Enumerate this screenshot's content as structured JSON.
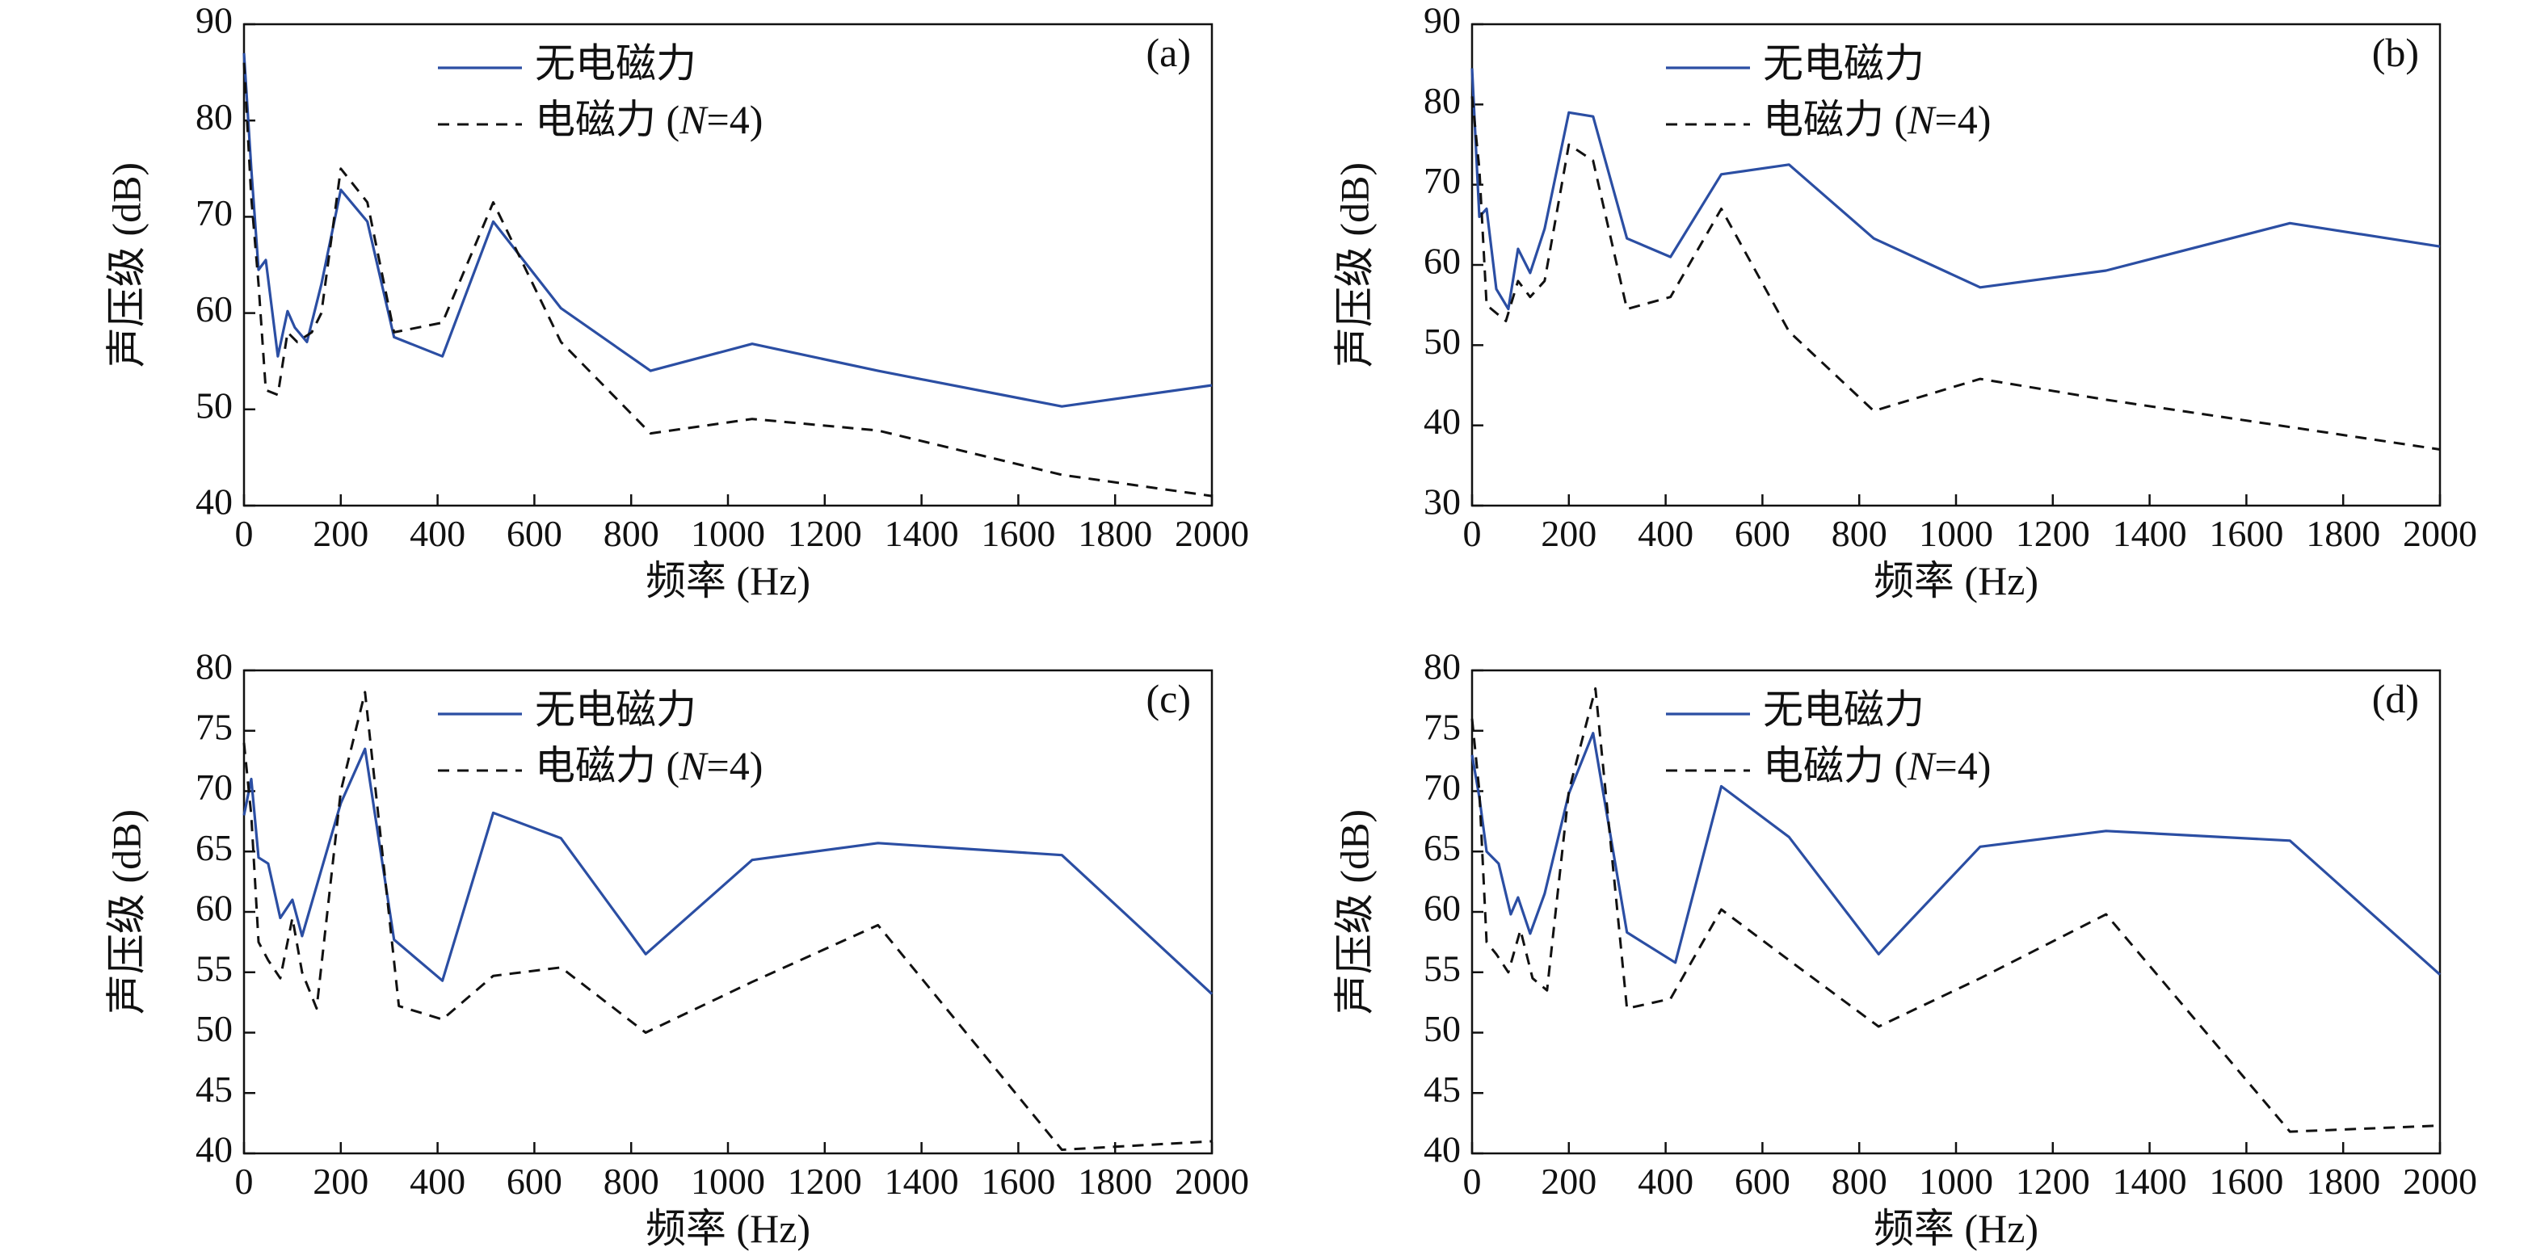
{
  "chart_data": [
    {
      "type": "line",
      "panel": "(a)",
      "xlabel": "频率 (Hz)",
      "ylabel": "声压级 (dB)",
      "xlim": [
        0,
        2000
      ],
      "ylim": [
        40,
        90
      ],
      "xticks": [
        0,
        200,
        400,
        600,
        800,
        1000,
        1200,
        1400,
        1600,
        1800,
        2000
      ],
      "yticks": [
        40,
        50,
        60,
        70,
        80,
        90
      ],
      "legend_position": "top",
      "series": [
        {
          "name": "无电磁力",
          "style": "solid",
          "color": "#2b4ea3",
          "x": [
            0,
            15,
            30,
            45,
            70,
            90,
            105,
            130,
            160,
            200,
            255,
            310,
            410,
            515,
            655,
            840,
            1050,
            1310,
            1690,
            2000
          ],
          "y": [
            87,
            75,
            64.5,
            65.5,
            55.5,
            60.2,
            58.5,
            57,
            63,
            72.8,
            69.5,
            57.5,
            55.5,
            69.5,
            60.5,
            54,
            56.8,
            54,
            50.3,
            52.5
          ]
        },
        {
          "name": "电磁力 (N=4)",
          "style": "dashed",
          "color": "#111111",
          "x": [
            0,
            15,
            30,
            45,
            70,
            90,
            110,
            140,
            160,
            200,
            255,
            310,
            410,
            515,
            655,
            840,
            1050,
            1310,
            1690,
            2000
          ],
          "y": [
            86,
            72,
            63,
            52,
            51.5,
            58,
            57,
            58,
            60,
            75,
            71.5,
            58,
            59,
            71.5,
            57,
            47.5,
            49,
            47.8,
            43.2,
            41
          ]
        }
      ]
    },
    {
      "type": "line",
      "panel": "(b)",
      "xlabel": "频率 (Hz)",
      "ylabel": "声压级 (dB)",
      "xlim": [
        0,
        2000
      ],
      "ylim": [
        30,
        90
      ],
      "xticks": [
        0,
        200,
        400,
        600,
        800,
        1000,
        1200,
        1400,
        1600,
        1800,
        2000
      ],
      "yticks": [
        30,
        40,
        50,
        60,
        70,
        80,
        90
      ],
      "legend_position": "top",
      "series": [
        {
          "name": "无电磁力",
          "style": "solid",
          "color": "#2b4ea3",
          "x": [
            0,
            15,
            30,
            50,
            75,
            95,
            120,
            150,
            200,
            250,
            320,
            410,
            515,
            655,
            830,
            1050,
            1310,
            1690,
            2000
          ],
          "y": [
            84.5,
            66,
            67,
            57,
            54.5,
            62,
            59,
            64.5,
            79,
            78.5,
            63.3,
            61,
            71.3,
            72.5,
            63.3,
            57.2,
            59.3,
            65.2,
            62.3
          ]
        },
        {
          "name": "电磁力 (N=4)",
          "style": "dashed",
          "color": "#111111",
          "x": [
            0,
            15,
            30,
            50,
            70,
            95,
            120,
            150,
            200,
            250,
            320,
            410,
            515,
            655,
            830,
            1050,
            1310,
            1690,
            2000
          ],
          "y": [
            81,
            72,
            55,
            54,
            53,
            58,
            56,
            58,
            75,
            73,
            54.5,
            56,
            67,
            51.7,
            41.8,
            45.8,
            43.2,
            39.8,
            37
          ]
        }
      ]
    },
    {
      "type": "line",
      "panel": "(c)",
      "xlabel": "频率 (Hz)",
      "ylabel": "声压级 (dB)",
      "xlim": [
        0,
        2000
      ],
      "ylim": [
        40,
        80
      ],
      "xticks": [
        0,
        200,
        400,
        600,
        800,
        1000,
        1200,
        1400,
        1600,
        1800,
        2000
      ],
      "yticks": [
        40,
        45,
        50,
        55,
        60,
        65,
        70,
        75,
        80
      ],
      "legend_position": "top",
      "series": [
        {
          "name": "无电磁力",
          "style": "solid",
          "color": "#2b4ea3",
          "x": [
            0,
            15,
            30,
            50,
            75,
            100,
            120,
            160,
            200,
            250,
            310,
            410,
            515,
            655,
            830,
            1050,
            1310,
            1690,
            2000
          ],
          "y": [
            68,
            71,
            64.5,
            64,
            59.5,
            61,
            58,
            63.5,
            69,
            73.5,
            57.7,
            54.3,
            68.2,
            66.1,
            56.5,
            64.3,
            65.7,
            64.7,
            53.2
          ]
        },
        {
          "name": "电磁力 (N=4)",
          "style": "dashed",
          "color": "#111111",
          "x": [
            0,
            15,
            30,
            50,
            75,
            100,
            120,
            150,
            200,
            250,
            320,
            410,
            515,
            655,
            830,
            1050,
            1310,
            1690,
            2000
          ],
          "y": [
            74,
            68,
            57.5,
            56,
            54.5,
            59.5,
            55,
            52,
            70,
            78.2,
            52.2,
            51.1,
            54.7,
            55.4,
            50,
            54.2,
            58.9,
            40.3,
            41
          ]
        }
      ]
    },
    {
      "type": "line",
      "panel": "(d)",
      "xlabel": "频率 (Hz)",
      "ylabel": "声压级 (dB)",
      "xlim": [
        0,
        2000
      ],
      "ylim": [
        40,
        80
      ],
      "xticks": [
        0,
        200,
        400,
        600,
        800,
        1000,
        1200,
        1400,
        1600,
        1800,
        2000
      ],
      "yticks": [
        40,
        45,
        50,
        55,
        60,
        65,
        70,
        75,
        80
      ],
      "legend_position": "top",
      "series": [
        {
          "name": "无电磁力",
          "style": "solid",
          "color": "#2b4ea3",
          "x": [
            0,
            15,
            30,
            55,
            80,
            95,
            120,
            150,
            200,
            250,
            320,
            420,
            515,
            655,
            840,
            1050,
            1310,
            1690,
            2000
          ],
          "y": [
            73,
            69.5,
            65,
            64,
            59.8,
            61.2,
            58.2,
            61.5,
            69.8,
            74.8,
            58.3,
            55.8,
            70.4,
            66.2,
            56.5,
            65.4,
            66.7,
            65.9,
            54.8
          ]
        },
        {
          "name": "电磁力 (N=4)",
          "style": "dashed",
          "color": "#111111",
          "x": [
            0,
            15,
            30,
            50,
            75,
            100,
            125,
            155,
            200,
            255,
            320,
            410,
            515,
            655,
            840,
            1050,
            1310,
            1690,
            2000
          ],
          "y": [
            76,
            70,
            57.5,
            56.5,
            55,
            58.5,
            54.5,
            53.5,
            70,
            78.5,
            52,
            52.8,
            60.2,
            56,
            50.5,
            54.5,
            59.8,
            41.8,
            42.3
          ]
        }
      ]
    }
  ]
}
